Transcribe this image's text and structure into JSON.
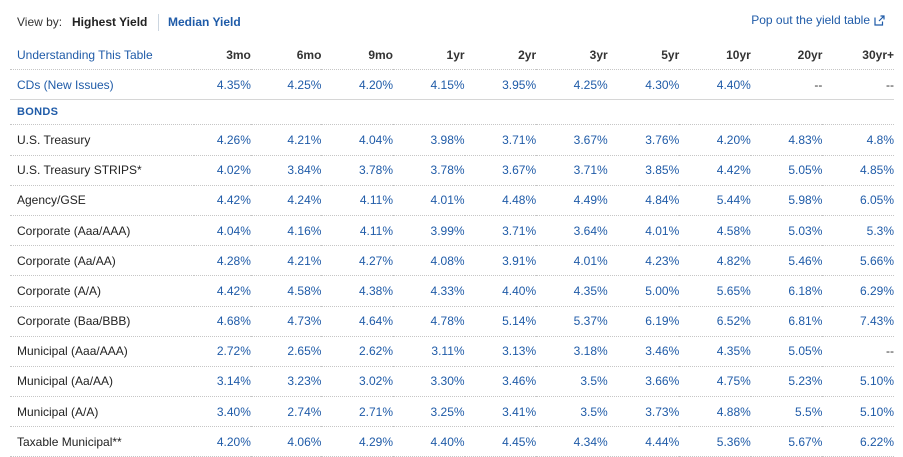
{
  "view_by": {
    "label": "View by:",
    "options": [
      "Highest Yield",
      "Median Yield"
    ],
    "selected": "Highest Yield"
  },
  "popout_label": "Pop out the yield table",
  "table": {
    "header_link": "Understanding This Table",
    "columns": [
      "3mo",
      "6mo",
      "9mo",
      "1yr",
      "2yr",
      "3yr",
      "5yr",
      "10yr",
      "20yr",
      "30yr+"
    ],
    "cds": {
      "label": "CDs (New Issues)",
      "values": [
        "4.35%",
        "4.25%",
        "4.20%",
        "4.15%",
        "3.95%",
        "4.25%",
        "4.30%",
        "4.40%",
        "--",
        "--"
      ]
    },
    "section_label": "BONDS",
    "rows": [
      {
        "label": "U.S. Treasury",
        "values": [
          "4.26%",
          "4.21%",
          "4.04%",
          "3.98%",
          "3.71%",
          "3.67%",
          "3.76%",
          "4.20%",
          "4.83%",
          "4.8%"
        ]
      },
      {
        "label": "U.S. Treasury STRIPS*",
        "values": [
          "4.02%",
          "3.84%",
          "3.78%",
          "3.78%",
          "3.67%",
          "3.71%",
          "3.85%",
          "4.42%",
          "5.05%",
          "4.85%"
        ]
      },
      {
        "label": "Agency/GSE",
        "values": [
          "4.42%",
          "4.24%",
          "4.11%",
          "4.01%",
          "4.48%",
          "4.49%",
          "4.84%",
          "5.44%",
          "5.98%",
          "6.05%"
        ]
      },
      {
        "label": "Corporate (Aaa/AAA)",
        "values": [
          "4.04%",
          "4.16%",
          "4.11%",
          "3.99%",
          "3.71%",
          "3.64%",
          "4.01%",
          "4.58%",
          "5.03%",
          "5.3%"
        ]
      },
      {
        "label": "Corporate (Aa/AA)",
        "values": [
          "4.28%",
          "4.21%",
          "4.27%",
          "4.08%",
          "3.91%",
          "4.01%",
          "4.23%",
          "4.82%",
          "5.46%",
          "5.66%"
        ]
      },
      {
        "label": "Corporate (A/A)",
        "values": [
          "4.42%",
          "4.58%",
          "4.38%",
          "4.33%",
          "4.40%",
          "4.35%",
          "5.00%",
          "5.65%",
          "6.18%",
          "6.29%"
        ]
      },
      {
        "label": "Corporate (Baa/BBB)",
        "values": [
          "4.68%",
          "4.73%",
          "4.64%",
          "4.78%",
          "5.14%",
          "5.37%",
          "6.19%",
          "6.52%",
          "6.81%",
          "7.43%"
        ]
      },
      {
        "label": "Municipal (Aaa/AAA)",
        "values": [
          "2.72%",
          "2.65%",
          "2.62%",
          "3.11%",
          "3.13%",
          "3.18%",
          "3.46%",
          "4.35%",
          "5.05%",
          "--"
        ]
      },
      {
        "label": "Municipal (Aa/AA)",
        "values": [
          "3.14%",
          "3.23%",
          "3.02%",
          "3.30%",
          "3.46%",
          "3.5%",
          "3.66%",
          "4.75%",
          "5.23%",
          "5.10%"
        ]
      },
      {
        "label": "Municipal (A/A)",
        "values": [
          "3.40%",
          "2.74%",
          "2.71%",
          "3.25%",
          "3.41%",
          "3.5%",
          "3.73%",
          "4.88%",
          "5.5%",
          "5.10%"
        ]
      },
      {
        "label": "Taxable Municipal**",
        "values": [
          "4.20%",
          "4.06%",
          "4.29%",
          "4.40%",
          "4.45%",
          "4.34%",
          "4.44%",
          "5.36%",
          "5.67%",
          "6.22%"
        ]
      }
    ]
  },
  "colors": {
    "link": "#1f5ba8",
    "text": "#222222",
    "divider": "#c6c6c6"
  },
  "icons": {
    "popout": "external-link-icon"
  }
}
